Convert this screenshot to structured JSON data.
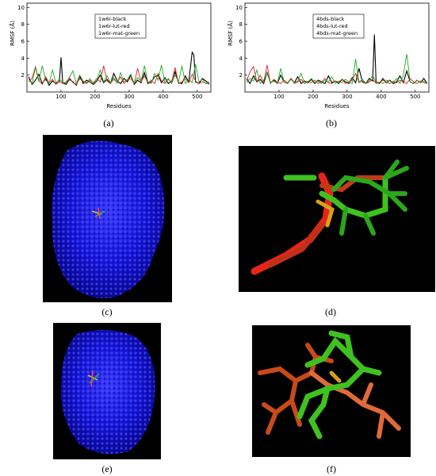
{
  "panels": {
    "a": {
      "caption": "(a)",
      "legend": [
        "1w6r-black",
        "1w6r-lut-red",
        "1w6r-mat-green"
      ],
      "chart_data": {
        "type": "line",
        "xlabel": "Residues",
        "ylabel": "RMSF (Å)",
        "xlim": [
          0,
          540
        ],
        "ylim": [
          0,
          10.5
        ],
        "xticks": [
          100,
          200,
          300,
          400,
          500
        ],
        "yticks": [
          2,
          4,
          6,
          8,
          10
        ],
        "series": [
          {
            "name": "1w6r-black",
            "color": "#000000",
            "x": [
              5,
              15,
              25,
              35,
              45,
              55,
              65,
              75,
              85,
              95,
              100,
              105,
              115,
              125,
              135,
              145,
              155,
              165,
              175,
              185,
              195,
              205,
              215,
              225,
              235,
              245,
              255,
              265,
              275,
              285,
              295,
              305,
              315,
              325,
              335,
              345,
              355,
              365,
              375,
              385,
              395,
              405,
              415,
              425,
              435,
              445,
              455,
              465,
              475,
              485,
              490,
              495,
              505,
              515,
              525,
              535
            ],
            "y": [
              1.8,
              0.9,
              1.4,
              2.1,
              1.0,
              1.6,
              0.8,
              1.3,
              1.0,
              1.2,
              4.1,
              1.1,
              0.9,
              1.5,
              1.2,
              0.8,
              1.9,
              1.0,
              1.4,
              1.2,
              0.9,
              1.3,
              2.0,
              1.1,
              1.5,
              1.0,
              2.2,
              1.3,
              1.0,
              1.6,
              1.2,
              2.0,
              0.9,
              1.4,
              1.1,
              2.3,
              1.0,
              1.2,
              1.8,
              2.0,
              1.1,
              1.7,
              1.0,
              1.3,
              2.4,
              1.1,
              1.0,
              1.9,
              1.2,
              4.7,
              4.4,
              1.2,
              1.0,
              1.6,
              1.3,
              1.0
            ]
          },
          {
            "name": "1w6r-lut-red",
            "color": "#e0202a",
            "x": [
              5,
              15,
              25,
              35,
              45,
              55,
              65,
              75,
              85,
              95,
              105,
              115,
              125,
              135,
              145,
              155,
              165,
              175,
              185,
              195,
              205,
              215,
              225,
              235,
              245,
              255,
              265,
              275,
              285,
              295,
              305,
              315,
              325,
              335,
              345,
              355,
              365,
              375,
              385,
              395,
              405,
              415,
              425,
              435,
              445,
              455,
              465,
              475,
              485,
              495,
              505,
              515,
              525,
              535
            ],
            "y": [
              1.2,
              1.6,
              3.0,
              1.4,
              0.9,
              1.8,
              1.1,
              1.5,
              0.9,
              1.3,
              1.0,
              1.2,
              1.7,
              1.1,
              0.9,
              1.6,
              1.2,
              1.0,
              1.4,
              1.1,
              1.6,
              1.2,
              3.1,
              1.3,
              1.0,
              1.5,
              1.1,
              1.8,
              1.0,
              1.4,
              1.6,
              1.0,
              2.8,
              1.2,
              1.9,
              1.1,
              1.4,
              1.0,
              2.2,
              1.3,
              1.0,
              1.5,
              1.2,
              2.9,
              1.0,
              1.2,
              1.6,
              1.1,
              2.1,
              1.3,
              1.0,
              1.2,
              1.1,
              0.9
            ]
          },
          {
            "name": "1w6r-mat-green",
            "color": "#22aa22",
            "x": [
              5,
              15,
              25,
              35,
              45,
              55,
              65,
              75,
              85,
              95,
              105,
              115,
              125,
              135,
              145,
              155,
              165,
              175,
              185,
              195,
              205,
              215,
              225,
              235,
              245,
              255,
              265,
              275,
              285,
              295,
              305,
              315,
              325,
              335,
              345,
              355,
              365,
              375,
              385,
              395,
              405,
              415,
              425,
              435,
              445,
              455,
              465,
              475,
              485,
              495,
              505,
              515,
              525,
              535
            ],
            "y": [
              1.5,
              1.0,
              2.9,
              1.2,
              3.1,
              1.4,
              1.0,
              2.6,
              1.1,
              1.5,
              1.2,
              1.0,
              1.8,
              2.5,
              1.0,
              2.0,
              1.3,
              1.1,
              1.6,
              1.0,
              1.4,
              2.6,
              1.2,
              1.9,
              1.1,
              1.7,
              1.0,
              2.3,
              1.2,
              1.5,
              2.1,
              1.0,
              1.7,
              1.3,
              3.1,
              1.2,
              1.0,
              2.2,
              1.4,
              3.2,
              1.1,
              1.6,
              1.0,
              2.0,
              1.2,
              3.1,
              1.0,
              1.5,
              1.1,
              3.3,
              1.2,
              1.5,
              1.0,
              1.2
            ]
          }
        ]
      }
    },
    "b": {
      "caption": "(b)",
      "legend": [
        "4bds-black",
        "4bds-lut-red",
        "4bds-mat-green"
      ],
      "chart_data": {
        "type": "line",
        "xlabel": "Residues",
        "ylabel": "RMSF (Å)",
        "xlim": [
          0,
          540
        ],
        "ylim": [
          0,
          10.5
        ],
        "xticks": [
          100,
          200,
          300,
          400,
          500
        ],
        "yticks": [
          2,
          4,
          6,
          8,
          10
        ],
        "series": [
          {
            "name": "4bds-black",
            "color": "#000000",
            "x": [
              5,
              15,
              25,
              35,
              45,
              55,
              65,
              75,
              85,
              95,
              105,
              115,
              125,
              135,
              145,
              155,
              165,
              175,
              185,
              195,
              205,
              215,
              225,
              235,
              245,
              255,
              265,
              275,
              285,
              295,
              305,
              315,
              325,
              335,
              345,
              355,
              365,
              375,
              380,
              385,
              395,
              405,
              415,
              425,
              435,
              445,
              455,
              465,
              475,
              485,
              495,
              505,
              515,
              525,
              535
            ],
            "y": [
              1.6,
              1.0,
              1.9,
              1.2,
              1.5,
              1.0,
              2.3,
              1.1,
              1.4,
              1.0,
              2.0,
              1.2,
              1.0,
              1.6,
              1.1,
              1.8,
              1.0,
              1.3,
              1.1,
              1.5,
              1.0,
              1.4,
              1.2,
              1.0,
              1.9,
              1.1,
              1.3,
              1.0,
              1.5,
              1.2,
              1.0,
              1.7,
              1.1,
              2.8,
              1.2,
              1.0,
              1.6,
              1.3,
              6.8,
              1.2,
              1.0,
              1.6,
              1.1,
              1.4,
              1.0,
              1.2,
              1.9,
              1.1,
              2.5,
              1.2,
              1.0,
              1.4,
              1.1,
              1.6,
              1.0
            ]
          },
          {
            "name": "4bds-lut-red",
            "color": "#e0202a",
            "x": [
              5,
              15,
              25,
              35,
              45,
              55,
              65,
              75,
              85,
              95,
              105,
              115,
              125,
              135,
              145,
              155,
              165,
              175,
              185,
              195,
              205,
              215,
              225,
              235,
              245,
              255,
              265,
              275,
              285,
              295,
              305,
              315,
              325,
              335,
              345,
              355,
              365,
              375,
              385,
              395,
              405,
              415,
              425,
              435,
              445,
              455,
              465,
              475,
              485,
              495,
              505,
              515,
              525,
              535
            ],
            "y": [
              1.3,
              2.4,
              3.0,
              1.2,
              2.0,
              1.1,
              3.2,
              1.0,
              1.5,
              1.2,
              1.0,
              1.4,
              1.1,
              1.6,
              1.0,
              1.2,
              1.5,
              1.0,
              1.3,
              1.1,
              1.4,
              1.0,
              1.2,
              1.6,
              1.1,
              1.0,
              1.3,
              1.2,
              1.5,
              1.0,
              1.2,
              1.4,
              2.2,
              1.1,
              1.3,
              1.0,
              1.2,
              1.5,
              1.0,
              1.1,
              1.4,
              1.2,
              1.0,
              1.3,
              1.1,
              1.4,
              1.2,
              1.0,
              1.6,
              1.2,
              1.0,
              1.3,
              1.1,
              1.0
            ]
          },
          {
            "name": "4bds-mat-green",
            "color": "#22aa22",
            "x": [
              5,
              15,
              25,
              35,
              45,
              55,
              65,
              75,
              85,
              95,
              105,
              115,
              125,
              135,
              145,
              155,
              165,
              175,
              185,
              195,
              205,
              215,
              225,
              235,
              245,
              255,
              265,
              275,
              285,
              295,
              305,
              315,
              325,
              335,
              345,
              355,
              365,
              375,
              385,
              395,
              405,
              415,
              425,
              435,
              445,
              455,
              465,
              475,
              485,
              495,
              505,
              515,
              525,
              535
            ],
            "y": [
              1.1,
              1.6,
              1.3,
              2.6,
              1.0,
              1.4,
              2.2,
              1.1,
              1.3,
              1.0,
              2.8,
              1.2,
              1.0,
              1.5,
              1.1,
              1.3,
              2.2,
              1.0,
              1.2,
              1.6,
              1.1,
              1.3,
              1.0,
              1.4,
              1.2,
              1.8,
              1.0,
              1.3,
              1.1,
              1.5,
              1.2,
              1.0,
              3.9,
              1.2,
              1.5,
              1.0,
              1.3,
              2.0,
              1.1,
              1.2,
              1.0,
              1.4,
              1.3,
              1.1,
              1.6,
              1.0,
              2.0,
              4.5,
              1.2,
              1.0,
              1.4,
              1.1,
              1.3,
              1.0
            ]
          }
        ]
      }
    },
    "c": {
      "caption": "(c)"
    },
    "d": {
      "caption": "(d)"
    },
    "e": {
      "caption": "(e)"
    },
    "f": {
      "caption": "(f)"
    }
  }
}
